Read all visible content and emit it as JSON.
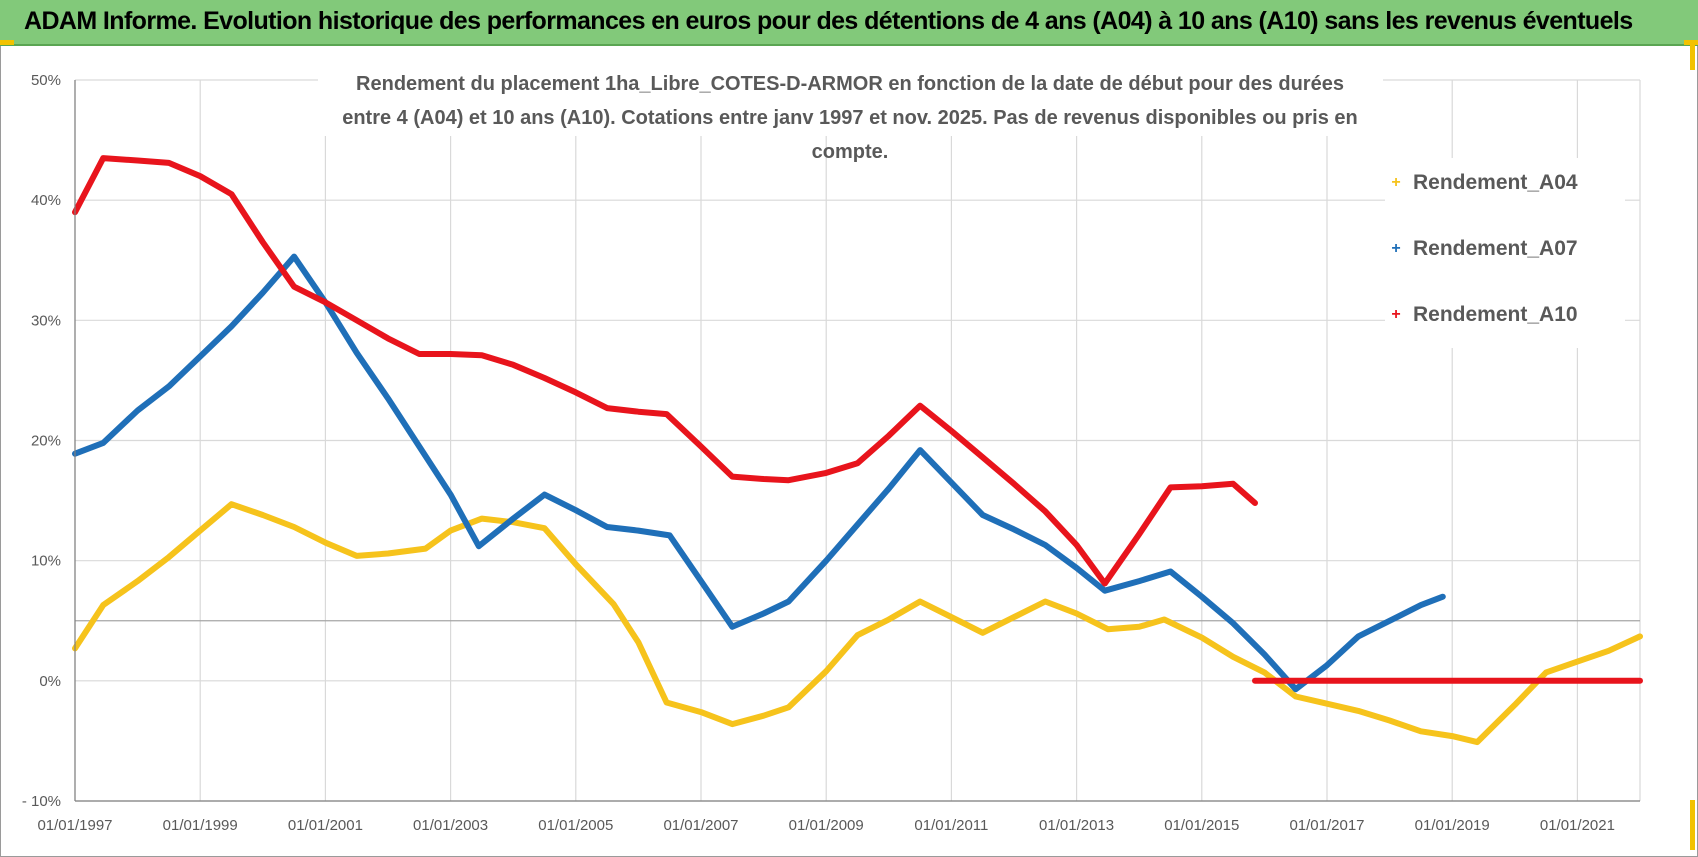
{
  "header": {
    "title": "ADAM Informe. Evolution historique des performances en euros pour des détentions de 4 ans (A04) à 10 ans (A10) sans les revenus éventuels"
  },
  "colors": {
    "header_bg": "#82c97a",
    "A04": "#f6c31c",
    "A07": "#1f6fb8",
    "A10": "#e8141c",
    "grid": "#d9d9d9",
    "text": "#595959"
  },
  "chart_data": {
    "type": "line",
    "title_line1": "Rendement du placement 1ha_Libre_COTES-D-ARMOR en fonction de la date de début pour des durées",
    "title_line2": "entre 4 (A04) et 10 ans (A10).  Cotations entre janv 1997  et  nov. 2025.  Pas de revenus disponibles ou pris en compte.",
    "xlabel": "",
    "ylabel": "",
    "xlim": [
      1997.0,
      2022.0
    ],
    "ylim": [
      -10,
      50
    ],
    "x_ticks": [
      "01/01/1997",
      "01/01/1999",
      "01/01/2001",
      "01/01/2003",
      "01/01/2005",
      "01/01/2007",
      "01/01/2009",
      "01/01/2011",
      "01/01/2013",
      "01/01/2015",
      "01/01/2017",
      "01/01/2019",
      "01/01/2021"
    ],
    "x_tick_values": [
      1997,
      1999,
      2001,
      2003,
      2005,
      2007,
      2009,
      2011,
      2013,
      2015,
      2017,
      2019,
      2021
    ],
    "y_ticks": [
      "- 10%",
      "0%",
      "10%",
      "20%",
      "30%",
      "40%",
      "50%"
    ],
    "y_tick_values": [
      -10,
      0,
      10,
      20,
      30,
      40,
      50
    ],
    "legend_position": "top-right",
    "series": [
      {
        "name": "Rendement_A04",
        "color": "#f6c31c",
        "x": [
          1997.0,
          1997.45,
          1998.0,
          1998.5,
          1999.0,
          1999.5,
          2000.0,
          2000.5,
          2001.0,
          2001.5,
          2002.0,
          2002.6,
          2003.0,
          2003.5,
          2004.0,
          2004.5,
          2005.0,
          2005.6,
          2006.0,
          2006.45,
          2007.0,
          2007.5,
          2008.0,
          2008.4,
          2009.0,
          2009.5,
          2010.0,
          2010.5,
          2011.0,
          2011.5,
          2012.0,
          2012.5,
          2013.0,
          2013.5,
          2014.0,
          2014.4,
          2015.0,
          2015.5,
          2016.0,
          2016.5,
          2017.0,
          2017.5,
          2018.0,
          2018.5,
          2019.0,
          2019.4,
          2020.0,
          2020.5,
          2021.0,
          2021.5,
          2022.0
        ],
        "y": [
          2.7,
          6.3,
          8.3,
          10.3,
          12.5,
          14.7,
          13.8,
          12.8,
          11.5,
          10.4,
          10.6,
          11.0,
          12.5,
          13.5,
          13.2,
          12.7,
          9.7,
          6.4,
          3.2,
          -1.8,
          -2.6,
          -3.6,
          -2.9,
          -2.2,
          0.8,
          3.8,
          5.1,
          6.6,
          5.3,
          4.0,
          5.3,
          6.6,
          5.6,
          4.3,
          4.5,
          5.1,
          3.6,
          2.0,
          0.7,
          -1.3,
          -1.9,
          -2.5,
          -3.3,
          -4.2,
          -4.6,
          -5.1,
          -2.0,
          0.7,
          1.6,
          2.5,
          3.7
        ]
      },
      {
        "name": "Rendement_A07",
        "color": "#1f6fb8",
        "x": [
          1997.0,
          1997.45,
          1998.0,
          1998.5,
          1999.0,
          1999.5,
          2000.0,
          2000.5,
          2001.0,
          2001.5,
          2002.0,
          2002.5,
          2003.0,
          2003.45,
          2004.0,
          2004.5,
          2005.0,
          2005.5,
          2006.0,
          2006.5,
          2007.0,
          2007.5,
          2008.0,
          2008.4,
          2009.0,
          2009.5,
          2010.0,
          2010.5,
          2011.0,
          2011.5,
          2012.0,
          2012.5,
          2013.0,
          2013.45,
          2014.0,
          2014.5,
          2015.0,
          2015.5,
          2016.0,
          2016.5,
          2017.0,
          2017.5,
          2018.0,
          2018.5,
          2018.85
        ],
        "y": [
          18.9,
          19.8,
          22.5,
          24.5,
          27.0,
          29.5,
          32.3,
          35.3,
          31.5,
          27.3,
          23.5,
          19.5,
          15.5,
          11.2,
          13.5,
          15.5,
          14.2,
          12.8,
          12.5,
          12.1,
          8.3,
          4.5,
          5.6,
          6.6,
          10.0,
          13.0,
          16.0,
          19.2,
          16.5,
          13.8,
          12.6,
          11.3,
          9.4,
          7.5,
          8.3,
          9.1,
          7.0,
          4.8,
          2.2,
          -0.7,
          1.3,
          3.7,
          5.0,
          6.3,
          7.0
        ]
      },
      {
        "name": "Rendement_A10",
        "color": "#e8141c",
        "x": [
          1997.0,
          1997.45,
          1998.0,
          1998.5,
          1999.0,
          1999.5,
          2000.0,
          2000.5,
          2001.0,
          2001.5,
          2002.0,
          2002.5,
          2003.0,
          2003.5,
          2004.0,
          2004.5,
          2005.0,
          2005.5,
          2006.0,
          2006.45,
          2007.0,
          2007.5,
          2008.0,
          2008.4,
          2009.0,
          2009.5,
          2010.0,
          2010.5,
          2011.0,
          2011.5,
          2012.0,
          2012.5,
          2013.0,
          2013.45,
          2014.0,
          2014.5,
          2015.0,
          2015.5,
          2015.85
        ],
        "y": [
          39.0,
          43.5,
          43.3,
          43.1,
          42.0,
          40.5,
          36.5,
          32.8,
          31.5,
          30.0,
          28.5,
          27.2,
          27.2,
          27.1,
          26.3,
          25.2,
          24.0,
          22.7,
          22.4,
          22.2,
          19.5,
          17.0,
          16.8,
          16.7,
          17.3,
          18.1,
          20.4,
          22.9,
          20.8,
          18.6,
          16.4,
          14.1,
          11.3,
          8.1,
          12.2,
          16.1,
          16.2,
          16.4,
          14.8
        ]
      },
      {
        "name": "Rendement_A10",
        "color": "#e8141c",
        "x": [
          2015.85,
          2022.0
        ],
        "y": [
          0.0,
          0.0
        ]
      }
    ]
  }
}
